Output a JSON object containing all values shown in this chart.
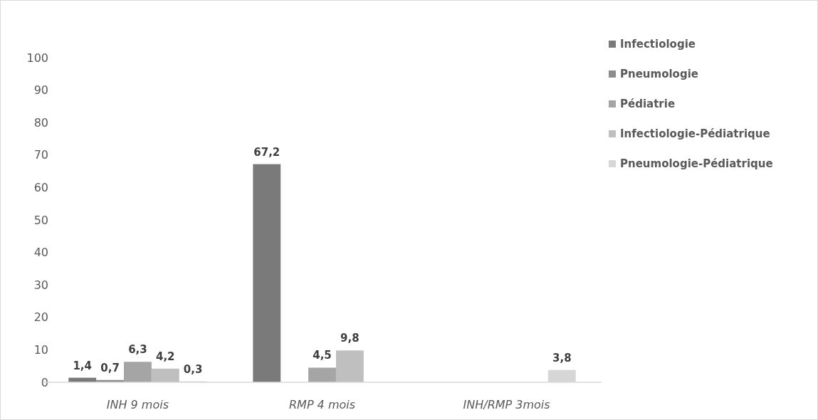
{
  "chart_data": {
    "type": "bar",
    "categories": [
      "INH 9 mois",
      "RMP 4 mois",
      "INH/RMP 3mois"
    ],
    "series": [
      {
        "name": "Infectiologie",
        "color": "#7a7a7a",
        "values": [
          1.4,
          67.2,
          null
        ],
        "value_labels": [
          "1,4",
          "67,2",
          null
        ]
      },
      {
        "name": "Pneumologie",
        "color": "#8c8c8c",
        "values": [
          0.7,
          null,
          null
        ],
        "value_labels": [
          "0,7",
          null,
          null
        ]
      },
      {
        "name": "Pédiatrie",
        "color": "#a5a5a5",
        "values": [
          6.3,
          4.5,
          null
        ],
        "value_labels": [
          "6,3",
          "4,5",
          null
        ]
      },
      {
        "name": "Infectiologie-Pédiatrique",
        "color": "#bfbfbf",
        "values": [
          4.2,
          9.8,
          null
        ],
        "value_labels": [
          "4,2",
          "9,8",
          null
        ]
      },
      {
        "name": "Pneumologie-Pédiatrique",
        "color": "#d6d6d6",
        "values": [
          0.3,
          null,
          3.8
        ],
        "value_labels": [
          "0,3",
          null,
          "3,8"
        ]
      }
    ],
    "ylim": [
      0,
      100
    ],
    "yticks": [
      0,
      10,
      20,
      30,
      40,
      50,
      60,
      70,
      80,
      90,
      100
    ],
    "grid": false,
    "legend": "right"
  }
}
